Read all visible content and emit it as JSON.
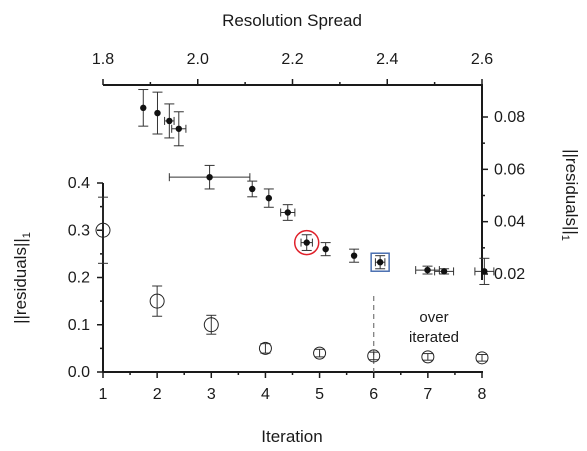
{
  "chart_data": {
    "type": "scatter",
    "top_axis": {
      "title": "Resolution Spread",
      "range": [
        1.8,
        2.6
      ],
      "ticks": [
        "1.8",
        "2.0",
        "2.2",
        "2.4",
        "2.6"
      ]
    },
    "right_axis": {
      "title": "||residuals||₁",
      "range": [
        0.02,
        0.09
      ],
      "ticks": [
        "0.02",
        "0.04",
        "0.06",
        "0.08"
      ]
    },
    "bottom_axis": {
      "title": "Iteration",
      "range": [
        1,
        8
      ],
      "ticks": [
        "1",
        "2",
        "3",
        "4",
        "5",
        "6",
        "7",
        "8"
      ]
    },
    "left_axis": {
      "title": "||residuals||₁",
      "range": [
        0.0,
        0.4
      ],
      "ticks": [
        "0.0",
        "0.1",
        "0.2",
        "0.3",
        "0.4"
      ]
    },
    "iteration_points": [
      {
        "x": 1,
        "y": 0.3,
        "err": 0.07
      },
      {
        "x": 2,
        "y": 0.15,
        "err": 0.032
      },
      {
        "x": 3,
        "y": 0.1,
        "err": 0.02
      },
      {
        "x": 4,
        "y": 0.05,
        "err": 0.01
      },
      {
        "x": 5,
        "y": 0.04,
        "err": 0.008
      },
      {
        "x": 6,
        "y": 0.034,
        "err": 0.008
      },
      {
        "x": 7,
        "y": 0.032,
        "err": 0.007
      },
      {
        "x": 8,
        "y": 0.03,
        "err": 0.007
      }
    ],
    "spread_points": [
      {
        "x": 1.885,
        "y": 0.0835,
        "yerr": 0.007,
        "xerr": 0
      },
      {
        "x": 1.915,
        "y": 0.0815,
        "yerr": 0.008,
        "xerr": 0
      },
      {
        "x": 1.94,
        "y": 0.0785,
        "yerr": 0.0065,
        "xerr": 0.01
      },
      {
        "x": 1.96,
        "y": 0.0755,
        "yerr": 0.0065,
        "xerr": 0.015
      },
      {
        "x": 2.025,
        "y": 0.057,
        "yerr": 0.0045,
        "xerr": 0.085
      },
      {
        "x": 2.115,
        "y": 0.0525,
        "yerr": 0.003,
        "xerr": 0
      },
      {
        "x": 2.15,
        "y": 0.049,
        "yerr": 0.0035,
        "xerr": 0
      },
      {
        "x": 2.19,
        "y": 0.0435,
        "yerr": 0.003,
        "xerr": 0.015
      },
      {
        "x": 2.23,
        "y": 0.032,
        "yerr": 0.003,
        "xerr": 0.012
      },
      {
        "x": 2.27,
        "y": 0.0295,
        "yerr": 0.0025,
        "xerr": 0
      },
      {
        "x": 2.33,
        "y": 0.027,
        "yerr": 0.0025,
        "xerr": 0
      },
      {
        "x": 2.385,
        "y": 0.0245,
        "yerr": 0.0025,
        "xerr": 0.01
      },
      {
        "x": 2.485,
        "y": 0.0215,
        "yerr": 0.0015,
        "xerr": 0.025
      },
      {
        "x": 2.52,
        "y": 0.021,
        "yerr": 0.001,
        "xerr": 0.02
      },
      {
        "x": 2.605,
        "y": 0.021,
        "yerr": 0.005,
        "xerr": 0.02
      }
    ],
    "highlights": [
      {
        "shape": "circle",
        "color": "#e0202a",
        "x": 2.23,
        "y": 0.032
      },
      {
        "shape": "square",
        "color": "#4a6fb0",
        "x": 2.385,
        "y": 0.0245
      }
    ],
    "dashed_line_iteration": 6,
    "annotation": [
      "over",
      "iterated"
    ]
  }
}
